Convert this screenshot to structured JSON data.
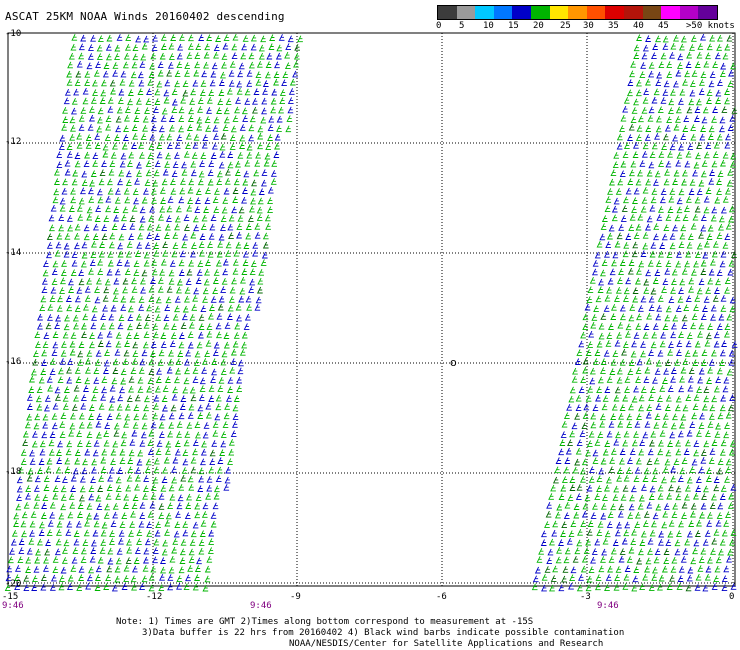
{
  "title": "ASCAT 25KM NOAA Winds 20160402 descending",
  "colorbar": {
    "colors": [
      "#3c3c3c",
      "#9a9a9a",
      "#00c8ff",
      "#0078ff",
      "#0000c8",
      "#00b400",
      "#ffe600",
      "#ff9600",
      "#ff5000",
      "#dc0000",
      "#b4140a",
      "#784614",
      "#ff00ff",
      "#b400c8",
      "#64009a"
    ],
    "labels": [
      "0",
      "5",
      "10",
      "15",
      "20",
      "25",
      "30",
      "35",
      "40",
      "45",
      ">50 knots"
    ]
  },
  "y_ticks": [
    "-10",
    "-12",
    "-14",
    "-16",
    "-18",
    "-20"
  ],
  "x_ticks": [
    "-15",
    "-12",
    "-9",
    "-6",
    "-3",
    "0"
  ],
  "time_labels": [
    "9:46",
    "9:46",
    "9:46"
  ],
  "notes": {
    "line1": "Note: 1) Times are GMT 2)Times along bottom correspond to measurement at -15S",
    "line2": "3)Data buffer is 22 hrs from 20160402 4) Black wind barbs indicate possible contamination",
    "line3": "NOAA/NESDIS/Center for Satellite Applications and Research"
  },
  "island_label": "o"
}
